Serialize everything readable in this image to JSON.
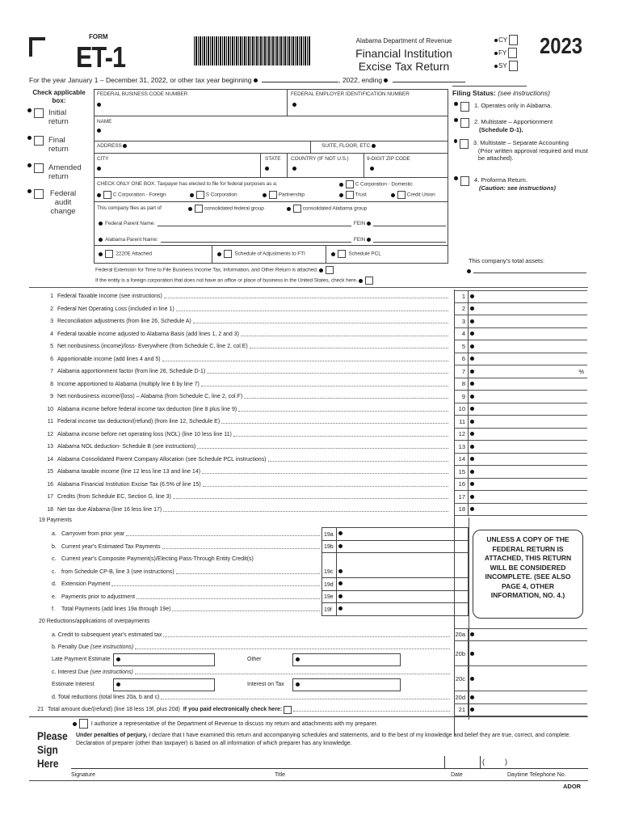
{
  "header": {
    "form_label": "FORM",
    "form_number": "ET-1",
    "department": "Alabama Department of Revenue",
    "title_line1": "Financial Institution",
    "title_line2": "Excise Tax Return",
    "year": "2023",
    "period_options": [
      "CY",
      "FY",
      "SY"
    ]
  },
  "tax_year": {
    "text": "For the year January 1 – December 31, 2022, or other tax year beginning",
    "mid": ", 2022, ending"
  },
  "check_applicable": {
    "title": "Check applicable box:",
    "items": [
      "Initial return",
      "Final return",
      "Amended return",
      "Federal audit change"
    ]
  },
  "entity": {
    "fbcn": "FEDERAL BUSINESS CODE NUMBER",
    "fein": "FEDERAL EMPLOYER IDENTIFICATION NUMBER",
    "name": "NAME",
    "address": "ADDRESS",
    "suite": "SUITE, FLOOR, ETC",
    "city": "CITY",
    "state": "STATE",
    "country": "COUNTRY (IF NOT U.S.)",
    "zip": "9-DIGIT ZIP CODE",
    "check_one": "CHECK ONLY ONE BOX. Taxpayer has elected to file for federal purposes as a:",
    "entity_types": [
      "C Corporation - Domestic",
      "C Corporation - Foreign",
      "S Corporation",
      "Partnership",
      "Trust",
      "Credit Union"
    ],
    "files_as_part": "This company files as part of",
    "groups": [
      "consolidated federal group",
      "consolidated Alabama group"
    ],
    "federal_parent": "Federal Parent Name:",
    "alabama_parent": "Alabama Parent Name:",
    "fein_label": "FEIN",
    "attachments": [
      "2220E Attached",
      "Schedule of Adjustments to FTI",
      "Schedule PCL"
    ],
    "extension": "Federal Extension for Time to File Business Income Tax, Information, and Other Return is attached.",
    "foreign": "If the entity is a foreign corporation that does not have an office or place of business in the United States, check here."
  },
  "filing_status": {
    "title": "Filing Status:",
    "hint": "(see instructions)",
    "items": [
      {
        "text": "1. Operates only in Alabama.",
        "sub": ""
      },
      {
        "text": "2. Multistate – Apportionment",
        "sub": "(Schedule D-1)."
      },
      {
        "text": "3. Multistate – Separate Accounting",
        "sub": "(Prior written approval required and must be attached)."
      },
      {
        "text": "4. Proforma Return.",
        "sub": "(Caution: see instructions)"
      }
    ],
    "assets": "This company's total assets:"
  },
  "lines": [
    {
      "n": "1",
      "t": "Federal Taxable Income (see instructions)"
    },
    {
      "n": "2",
      "t": "Federal Net Operating Loss (included in line 1)"
    },
    {
      "n": "3",
      "t": "Reconciliation adjustments (from line 26, Schedule A)"
    },
    {
      "n": "4",
      "t": "Federal taxable income adjusted to Alabama Basis (add lines 1, 2 and 3)"
    },
    {
      "n": "5",
      "t": "Net nonbusiness (income)/loss- Everywhere (from Schedule C, line 2, col.E)"
    },
    {
      "n": "6",
      "t": "Apportionable income (add lines 4 and 5)"
    },
    {
      "n": "7",
      "t": "Alabama apportionment factor (from line 26, Schedule D-1)",
      "suffix": "%"
    },
    {
      "n": "8",
      "t": "Income apportioned to Alabama (multiply line 6 by line 7)"
    },
    {
      "n": "9",
      "t": "Net nonbusiness income/(loss) – Alabama (from Schedule C, line 2, col.F)"
    },
    {
      "n": "10",
      "t": "Alabama income before federal income tax deduction (line 8 plus line 9)"
    },
    {
      "n": "11",
      "t": "Federal income tax deduction/(refund) (from line 12, Schedule E)"
    },
    {
      "n": "12",
      "t": "Alabama income before net operating loss (NOL) (line 10 less line 11)"
    },
    {
      "n": "13",
      "t": "Alabama NOL deduction- Schedule B (see instructions)"
    },
    {
      "n": "14",
      "t": "Alabama Consolidated Parent Company Allocation (see Schedule PCL instructions)"
    },
    {
      "n": "15",
      "t": "Alabama taxable income (line 12 less line 13 and line 14)"
    },
    {
      "n": "16",
      "t": "Alabama Financial Institution Excise Tax (6.5% of line 15)"
    },
    {
      "n": "17",
      "t": "Credits (from Schedule EC, Section G, line 3)"
    },
    {
      "n": "18",
      "t": "Net tax due Alabama (line 16 less line 17)"
    }
  ],
  "payments": {
    "title": "19  Payments",
    "items": [
      {
        "l": "a.",
        "t": "Carryover from prior year",
        "n": "19a"
      },
      {
        "l": "b.",
        "t": "Current year's Estimated Tax Payments",
        "n": "19b"
      },
      {
        "l": "c.",
        "t": "Current year's Composite Payment(s)/Electing Pass-Through Entity Credit(s)",
        "t2": "from Schedule CP-B, line 3 (see instructions)",
        "n": "19c"
      },
      {
        "l": "d.",
        "t": "Extension Payment",
        "n": "19d"
      },
      {
        "l": "e.",
        "t": "Payments prior to adjustment",
        "n": "19e"
      },
      {
        "l": "f.",
        "t": "Total Payments (add lines 19a through 19e)",
        "n": "19f"
      }
    ]
  },
  "notice": "UNLESS A COPY OF THE FEDERAL RETURN IS ATTACHED, THIS RETURN WILL BE CONSIDERED INCOMPLETE. (SEE ALSO PAGE 4, OTHER INFORMATION, NO. 4.)",
  "reductions": {
    "title": "20  Reductions/applications of overpayments",
    "a": "a.  Credit to subsequent year's estimated tax",
    "b": "b.  Penalty Due",
    "b_hint": "(see instructions)",
    "late": "Late Payment Estimate",
    "other": "Other",
    "c": "c.  Interest Due",
    "c_hint": "(see instructions)",
    "est_int": "Estimate Interest",
    "int_tax": "Interest on Tax",
    "d": "d.  Total reductions (total lines 20a, b and c)",
    "nums": [
      "20a",
      "20b",
      "20c",
      "20d"
    ]
  },
  "line21": {
    "n": "21",
    "t": "Total amount due/(refund) (line 18 less 19f, plus 20d)",
    "check": "If you paid electronically check here:"
  },
  "sign": {
    "heading": [
      "Please",
      "Sign",
      "Here"
    ],
    "authorize": "I authorize a representative of the Department of Revenue to discuss my return and attachments with my preparer.",
    "perjury_bold": "Under penalties of perjury,",
    "perjury": " I declare that I have examined this return and accompanying schedules and statements, and to the best of my knowledge and belief they are true, correct, and complete. Declaration of preparer (other than taxpayer) is based on all information of which preparer has any knowledge.",
    "phone_parens": "(          )",
    "fields": [
      "Signature",
      "Title",
      "Date",
      "Daytime Telephone No."
    ]
  },
  "footer": "ADOR"
}
